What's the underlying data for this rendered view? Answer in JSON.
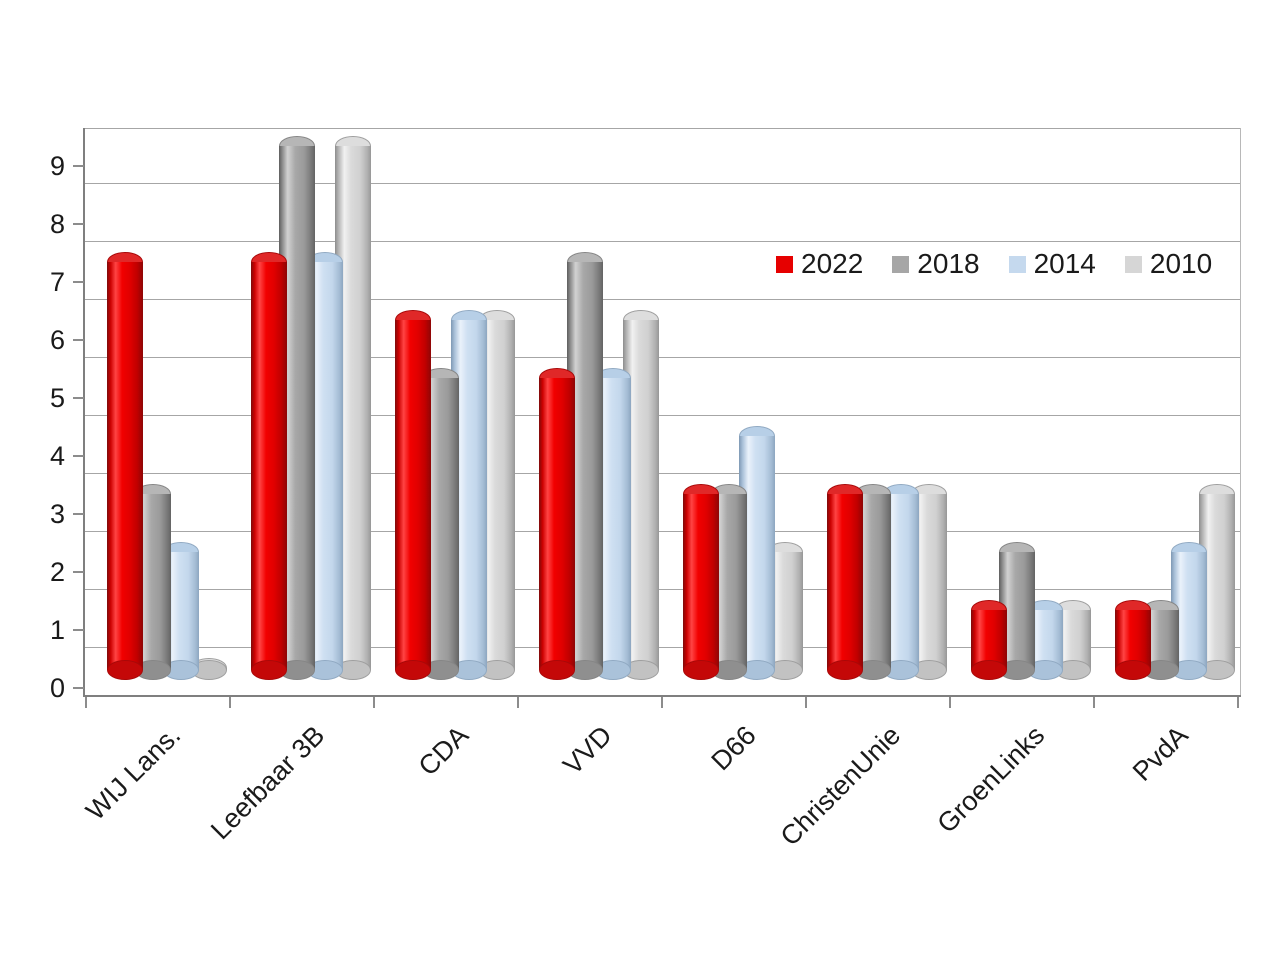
{
  "page": {
    "background": "#ffffff"
  },
  "chart_data": {
    "type": "bar",
    "subtype": "3d-cylinder-clustered",
    "title": "",
    "xlabel": "",
    "ylabel": "",
    "categories": [
      "WIJ Lans.",
      "Leefbaar 3B",
      "CDA",
      "VVD",
      "D66",
      "ChristenUnie",
      "GroenLinks",
      "PvdA"
    ],
    "series": [
      {
        "name": "2022",
        "color": "#e60000",
        "values": [
          7,
          7,
          6,
          5,
          3,
          3,
          1,
          1
        ]
      },
      {
        "name": "2018",
        "color": "#a6a6a6",
        "values": [
          3,
          9,
          5,
          7,
          3,
          3,
          2,
          1
        ]
      },
      {
        "name": "2014",
        "color": "#c5d9ee",
        "values": [
          2,
          7,
          6,
          5,
          4,
          3,
          1,
          2
        ]
      },
      {
        "name": "2010",
        "color": "#d6d6d6",
        "values": [
          0,
          9,
          6,
          6,
          2,
          3,
          1,
          3
        ]
      }
    ],
    "ylim": [
      0,
      9
    ],
    "yticks": [
      0,
      1,
      2,
      3,
      4,
      5,
      6,
      7,
      8,
      9
    ],
    "grid": "horizontal",
    "gridline_color": "#a6a6a6",
    "axis_color": "#7f7f7f",
    "text_color": "#1a1a1a",
    "legend_position": "top-right"
  }
}
